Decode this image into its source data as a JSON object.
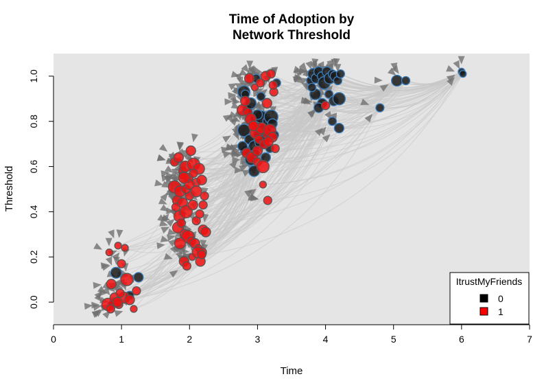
{
  "chart_data": {
    "type": "scatter",
    "title": "Time of Adoption by\nNetwork Threshold",
    "title_lines": [
      "Time of Adoption by",
      "Network Threshold"
    ],
    "xlabel": "Time",
    "ylabel": "Threshold",
    "xlim": [
      0,
      7
    ],
    "ylim": [
      -0.1,
      1.1
    ],
    "x_ticks": [
      0,
      1,
      2,
      3,
      4,
      5,
      6,
      7
    ],
    "x_tick_labels": [
      "0",
      "1",
      "2",
      "3",
      "4",
      "5",
      "6",
      "7"
    ],
    "y_ticks": [
      0.0,
      0.2,
      0.4,
      0.6,
      0.8,
      1.0
    ],
    "y_tick_labels": [
      "0.0",
      "0.2",
      "0.4",
      "0.6",
      "0.8",
      "1.0"
    ],
    "grid": false,
    "background_color": "#e5e5e5",
    "edge_color": "#c8c8c8",
    "arrow_color": "#707070",
    "legend": {
      "title": "ItrustMyFriends",
      "position": "bottom-right",
      "entries": [
        {
          "label": "0",
          "color": "#000000"
        },
        {
          "label": "1",
          "color": "#ff0000"
        }
      ]
    },
    "series": [
      {
        "name": "0",
        "color": "#1a1a1a",
        "stroke": "#3b7fbf",
        "x": [
          0.92,
          1.25,
          1.12,
          0.85,
          2.8,
          2.85,
          2.9,
          2.95,
          3.0,
          3.05,
          3.1,
          3.15,
          3.2,
          3.25,
          2.8,
          2.88,
          2.95,
          3.02,
          3.08,
          3.12,
          3.18,
          2.82,
          2.9,
          2.97,
          3.05,
          3.12,
          2.95,
          3.05,
          3.22,
          2.98,
          2.78,
          3.78,
          3.82,
          3.86,
          3.9,
          3.94,
          3.98,
          4.02,
          4.06,
          4.1,
          4.14,
          4.18,
          4.22,
          3.85,
          3.95,
          4.05,
          4.12,
          4.2,
          3.8,
          3.9,
          4.1,
          4.2,
          4.8,
          5.05,
          5.18,
          6.0,
          6.02,
          3.0,
          3.28,
          2.82
        ],
        "y": [
          0.13,
          0.11,
          0.03,
          -0.01,
          0.93,
          0.85,
          0.88,
          0.81,
          0.78,
          0.82,
          0.76,
          0.8,
          0.82,
          0.74,
          0.76,
          0.72,
          0.69,
          0.74,
          0.7,
          0.73,
          0.68,
          0.67,
          0.63,
          0.66,
          0.71,
          0.64,
          0.58,
          0.91,
          0.79,
          0.99,
          0.69,
          0.98,
          1.01,
          0.99,
          1.02,
          1.0,
          0.97,
          1.02,
          0.99,
          1.01,
          1.0,
          0.98,
          1.01,
          0.92,
          0.88,
          0.92,
          0.89,
          0.9,
          0.95,
          0.86,
          0.8,
          0.77,
          0.86,
          0.98,
          0.98,
          1.02,
          1.01,
          0.83,
          0.97,
          0.92
        ],
        "size": [
          8,
          7,
          6,
          5,
          9,
          7,
          8,
          6,
          8,
          9,
          10,
          7,
          10,
          6,
          9,
          7,
          8,
          8,
          7,
          9,
          6,
          7,
          8,
          6,
          9,
          7,
          8,
          6,
          7,
          6,
          7,
          6,
          8,
          7,
          7,
          6,
          9,
          7,
          8,
          6,
          7,
          6,
          6,
          8,
          7,
          6,
          7,
          9,
          6,
          7,
          6,
          7,
          6,
          8,
          6,
          5,
          5,
          7,
          6,
          6
        ]
      },
      {
        "name": "1",
        "color": "#f01010",
        "stroke": "#555555",
        "x": [
          0.8,
          0.84,
          0.9,
          0.96,
          1.0,
          1.04,
          1.08,
          1.12,
          1.18,
          1.22,
          0.85,
          0.95,
          1.05,
          0.98,
          0.94,
          0.82,
          1.78,
          1.82,
          1.86,
          1.9,
          1.94,
          1.98,
          2.02,
          2.06,
          2.1,
          2.14,
          2.18,
          2.22,
          1.8,
          1.85,
          1.9,
          1.95,
          2.0,
          2.05,
          2.1,
          2.15,
          2.2,
          1.83,
          1.88,
          1.93,
          1.98,
          2.03,
          2.08,
          2.13,
          2.18,
          1.86,
          1.92,
          1.96,
          2.04,
          2.12,
          2.16,
          1.78,
          1.84,
          1.9,
          1.95,
          2.0,
          2.06,
          2.1,
          2.2,
          2.24,
          1.92,
          2.18,
          2.78,
          2.82,
          2.86,
          2.9,
          2.94,
          2.98,
          3.02,
          3.06,
          3.1,
          3.14,
          3.18,
          3.22,
          3.26,
          2.84,
          2.92,
          3.0,
          3.08,
          3.16,
          3.24,
          2.88,
          2.96,
          3.04,
          3.12,
          3.2,
          3.15,
          2.94,
          3.08,
          3.23,
          4.0,
          3.14,
          3.0
        ],
        "y": [
          -0.01,
          -0.03,
          0.02,
          -0.01,
          0.17,
          0.02,
          0.1,
          0.01,
          -0.03,
          0.05,
          0.08,
          0.25,
          0.24,
          0.04,
          0.0,
          0.22,
          0.51,
          0.45,
          0.49,
          0.58,
          0.6,
          0.55,
          0.67,
          0.61,
          0.53,
          0.59,
          0.54,
          0.47,
          0.42,
          0.38,
          0.44,
          0.4,
          0.47,
          0.43,
          0.36,
          0.39,
          0.32,
          0.33,
          0.35,
          0.3,
          0.29,
          0.27,
          0.26,
          0.24,
          0.22,
          0.26,
          0.18,
          0.16,
          0.2,
          0.22,
          0.18,
          0.62,
          0.64,
          0.56,
          0.5,
          0.52,
          0.57,
          0.49,
          0.43,
          0.31,
          0.55,
          0.21,
          0.85,
          0.89,
          0.84,
          0.81,
          0.78,
          0.75,
          0.72,
          0.77,
          0.7,
          0.74,
          0.76,
          0.73,
          0.68,
          0.66,
          0.64,
          0.62,
          0.6,
          0.71,
          0.93,
          0.99,
          0.95,
          0.97,
          1.0,
          1.01,
          0.45,
          0.78,
          0.52,
          0.96,
          0.87,
          0.88,
          0.67
        ],
        "size": [
          9,
          6,
          7,
          6,
          6,
          8,
          9,
          7,
          5,
          6,
          7,
          5,
          5,
          6,
          7,
          5,
          9,
          7,
          8,
          6,
          8,
          7,
          7,
          9,
          6,
          8,
          7,
          6,
          6,
          8,
          7,
          9,
          6,
          7,
          6,
          6,
          7,
          8,
          6,
          7,
          9,
          6,
          7,
          5,
          7,
          8,
          7,
          6,
          5,
          8,
          7,
          6,
          7,
          5,
          6,
          7,
          6,
          8,
          6,
          7,
          8,
          6,
          8,
          7,
          6,
          8,
          7,
          9,
          6,
          8,
          7,
          6,
          9,
          7,
          6,
          7,
          8,
          6,
          9,
          7,
          6,
          7,
          5,
          6,
          7,
          6,
          6,
          7,
          5,
          6,
          6,
          7,
          7
        ]
      }
    ]
  }
}
